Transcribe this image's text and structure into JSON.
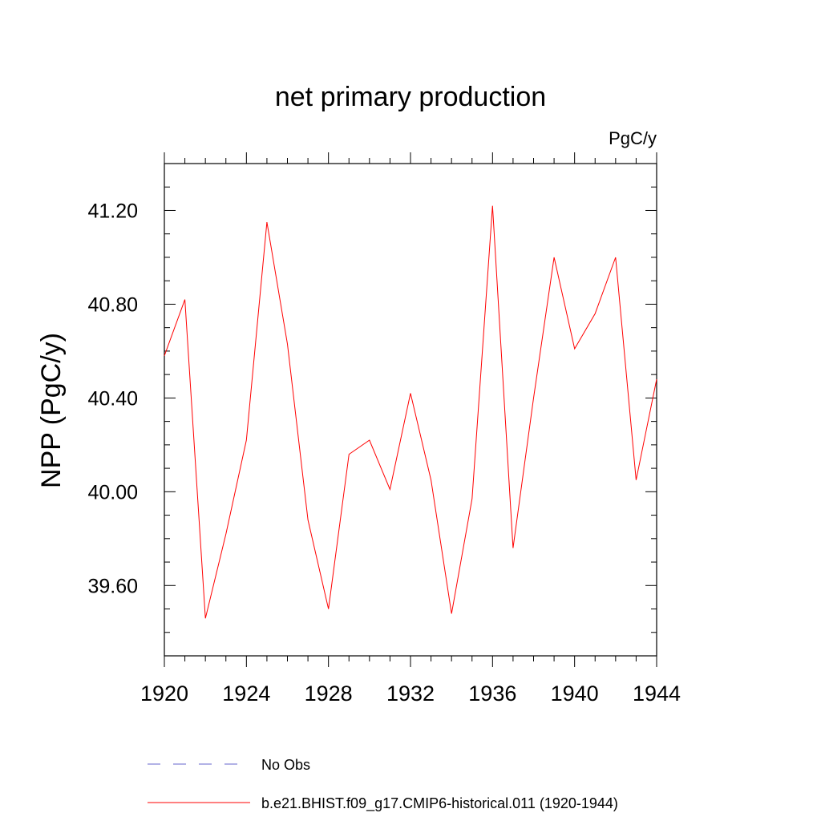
{
  "chart_data": {
    "type": "line",
    "title": "net primary production",
    "units_label": "PgC/y",
    "ylabel": "NPP  (PgC/y)",
    "xlabel": "",
    "xlim": [
      1920,
      1944
    ],
    "ylim": [
      39.3,
      41.4
    ],
    "x_ticks": [
      1920,
      1924,
      1928,
      1932,
      1936,
      1940,
      1944
    ],
    "x_tick_labels": [
      "1920",
      "1924",
      "1928",
      "1932",
      "1936",
      "1940",
      "1944"
    ],
    "y_ticks": [
      39.6,
      40.0,
      40.4,
      40.8,
      41.2
    ],
    "y_tick_labels": [
      "39.60",
      "40.00",
      "40.40",
      "40.80",
      "41.20"
    ],
    "grid": false,
    "legend_placement": "bottom",
    "series": [
      {
        "name": "b.e21.BHIST.f09_g17.CMIP6-historical.011 (1920-1944)",
        "color": "#ff0000",
        "style": "solid",
        "x": [
          1920,
          1921,
          1922,
          1923,
          1924,
          1925,
          1926,
          1927,
          1928,
          1929,
          1930,
          1931,
          1932,
          1933,
          1934,
          1935,
          1936,
          1937,
          1938,
          1939,
          1940,
          1941,
          1942,
          1943,
          1944
        ],
        "values": [
          40.58,
          40.82,
          39.46,
          39.82,
          40.22,
          41.15,
          40.63,
          39.88,
          39.5,
          40.16,
          40.22,
          40.01,
          40.42,
          40.05,
          39.48,
          39.97,
          41.22,
          39.76,
          40.4,
          41.0,
          40.61,
          40.76,
          41.0,
          40.05,
          40.48
        ]
      }
    ],
    "legend": [
      {
        "label": "No Obs",
        "color": "#6666cc",
        "style": "dashed"
      },
      {
        "label": "b.e21.BHIST.f09_g17.CMIP6-historical.011 (1920-1944)",
        "color": "#ff0000",
        "style": "solid"
      }
    ]
  }
}
